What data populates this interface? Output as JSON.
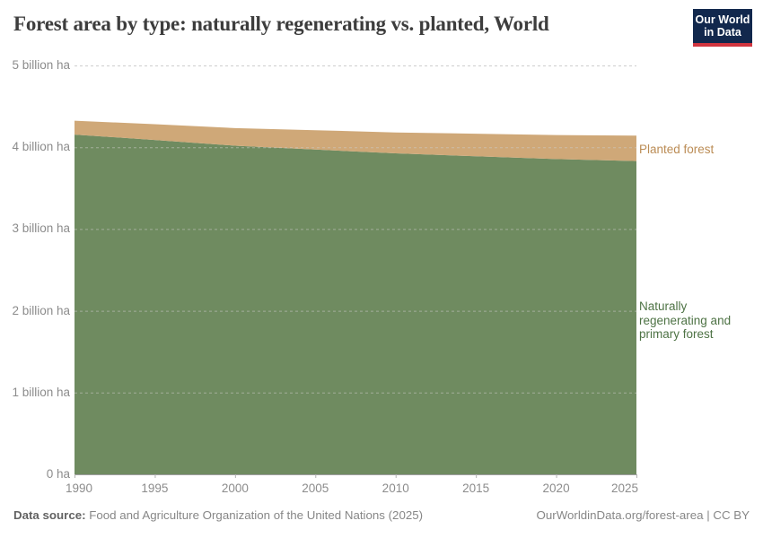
{
  "header": {
    "title": "Forest area by type: naturally regenerating vs. planted, World",
    "logo": {
      "line1": "Our World",
      "line2": "in Data",
      "bg_color": "#12284d",
      "accent_color": "#d1353f"
    }
  },
  "chart_data": {
    "type": "area",
    "stacked": true,
    "title": "Forest area by type: naturally regenerating vs. planted, World",
    "unit": "billion ha",
    "x": [
      1990,
      1995,
      2000,
      2005,
      2010,
      2015,
      2020,
      2025
    ],
    "series": [
      {
        "name": "Naturally regenerating and primary forest",
        "color": "#6f8b60",
        "label_color": "#4e7345",
        "values": [
          4.155,
          4.089,
          4.019,
          3.972,
          3.925,
          3.889,
          3.855,
          3.831
        ]
      },
      {
        "name": "Planted forest",
        "color": "#cfa878",
        "label_color": "#bb8c55",
        "values": [
          0.17,
          0.193,
          0.215,
          0.236,
          0.256,
          0.277,
          0.294,
          0.311
        ]
      }
    ],
    "xlim": [
      1990,
      2025
    ],
    "ylim": [
      0,
      5
    ],
    "grid": "dashed-horizontal",
    "legend_position": "right-of-plot",
    "y_ticks": [
      {
        "value": 5,
        "label": "5 billion ha"
      },
      {
        "value": 4,
        "label": "4 billion ha"
      },
      {
        "value": 3,
        "label": "3 billion ha"
      },
      {
        "value": 2,
        "label": "2 billion ha"
      },
      {
        "value": 1,
        "label": "1 billion ha"
      },
      {
        "value": 0,
        "label": "0 ha"
      }
    ],
    "x_ticks": [
      {
        "year": 1990,
        "label": "1990"
      },
      {
        "year": 1995,
        "label": "1995"
      },
      {
        "year": 2000,
        "label": "2000"
      },
      {
        "year": 2005,
        "label": "2005"
      },
      {
        "year": 2010,
        "label": "2010"
      },
      {
        "year": 2015,
        "label": "2015"
      },
      {
        "year": 2020,
        "label": "2020"
      },
      {
        "year": 2025,
        "label": "2025"
      }
    ]
  },
  "legend": {
    "planted_label": "Planted forest",
    "natural_label": "Naturally\nregenerating and\nprimary forest"
  },
  "footer": {
    "source_label": "Data source:",
    "source_text": "Food and Agriculture Organization of the United Nations (2025)",
    "link_text": "OurWorldinData.org/forest-area | CC BY"
  }
}
